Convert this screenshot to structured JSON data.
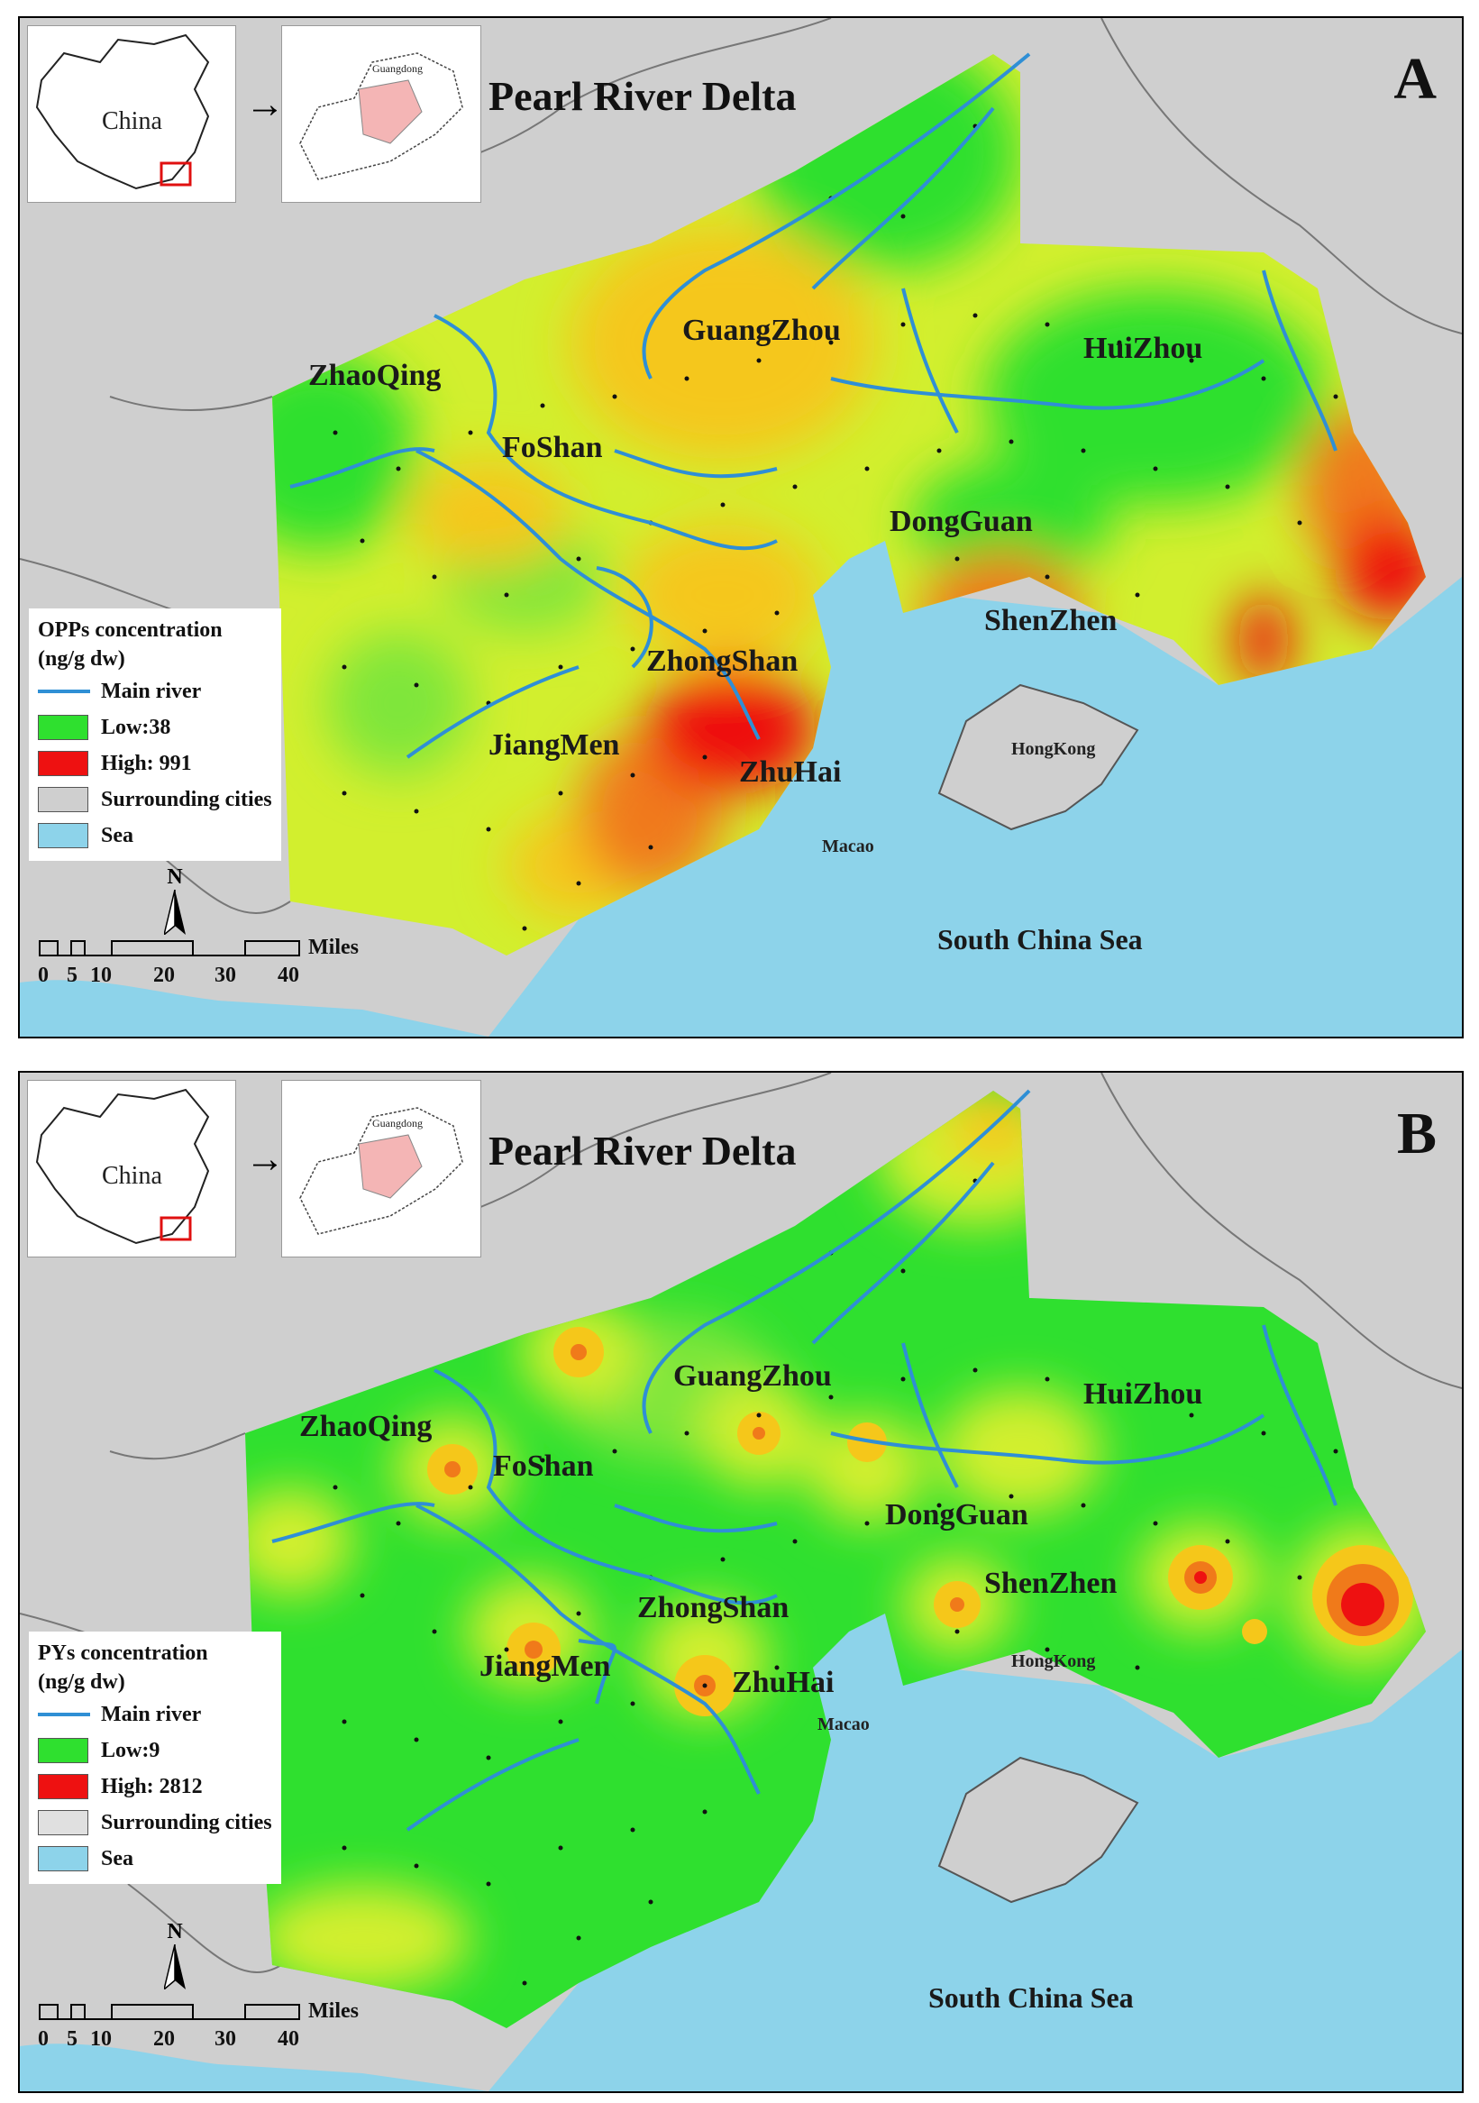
{
  "title": "Pearl River Delta",
  "colors": {
    "sea": "#8dd3ea",
    "land": "#cfcfcf",
    "low": "#2fe02f",
    "mid1": "#7fe63a",
    "mid2": "#d2ef2e",
    "mid3": "#f5c71a",
    "mid4": "#f07a1a",
    "high": "#ee1111",
    "river": "#2f8fd5",
    "inset_highlight": "#f4b5b5"
  },
  "inset": {
    "country": "China",
    "province": "Guangdong"
  },
  "cities": {
    "zhaoqing": "ZhaoQing",
    "guangzhou": "GuangZhou",
    "huizhou": "HuiZhou",
    "foshan": "FoShan",
    "dongguan": "DongGuan",
    "shenzhen": "ShenZhen",
    "zhongshan": "ZhongShan",
    "jiangmen": "JiangMen",
    "zhuhai": "ZhuHai",
    "hongkong": "HongKong",
    "macao": "Macao"
  },
  "sea_label": "South China Sea",
  "scale": {
    "ticks": [
      "0",
      "5",
      "10",
      "20",
      "30",
      "40"
    ],
    "unit": "Miles"
  },
  "north": "N",
  "panels": [
    {
      "letter": "A",
      "legend": {
        "title_line1": "OPPs concentration",
        "title_line2": "(ng/g dw)",
        "river": "Main river",
        "low": "Low:38",
        "high": "High: 991",
        "surrounding": "Surrounding cities",
        "sea": "Sea"
      }
    },
    {
      "letter": "B",
      "legend": {
        "title_line1": "PYs concentration",
        "title_line2": "(ng/g dw)",
        "river": "Main river",
        "low": "Low:9",
        "high": "High: 2812",
        "surrounding": "Surrounding cities",
        "sea": "Sea"
      }
    }
  ]
}
